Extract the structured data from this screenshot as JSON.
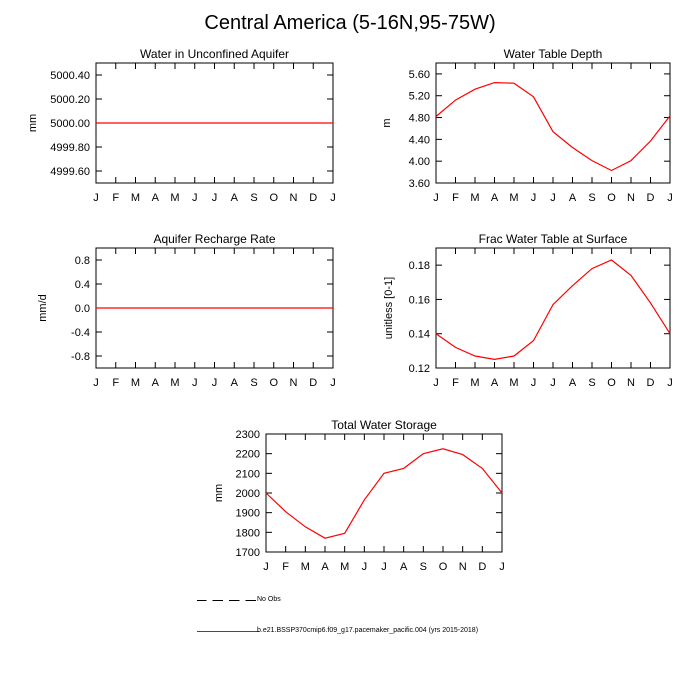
{
  "title": "Central America (5-16N,95-75W)",
  "legend": {
    "obs_label": "No Obs",
    "model_label": "b.e21.BSSP370cmip6.f09_g17.pacemaker_pacific.004 (yrs 2015-2018)",
    "model_color": "#ff0000"
  },
  "chart_data": [
    {
      "type": "line",
      "title": "Water in Unconfined Aquifer",
      "ylabel": "mm",
      "xlabel": "",
      "categories": [
        "J",
        "F",
        "M",
        "A",
        "M",
        "J",
        "J",
        "A",
        "S",
        "O",
        "N",
        "D",
        "J"
      ],
      "ylim": [
        4999.5,
        5000.5
      ],
      "yticks": [
        4999.6,
        4999.8,
        5000.0,
        5000.2,
        5000.4
      ],
      "ytick_labels": [
        "4999.60",
        "4999.80",
        "5000.00",
        "5000.20",
        "5000.40"
      ],
      "series": [
        {
          "name": "model",
          "color": "#ff0000",
          "values": [
            5000,
            5000,
            5000,
            5000,
            5000,
            5000,
            5000,
            5000,
            5000,
            5000,
            5000,
            5000,
            5000
          ]
        }
      ]
    },
    {
      "type": "line",
      "title": "Water Table Depth",
      "ylabel": "m",
      "xlabel": "",
      "categories": [
        "J",
        "F",
        "M",
        "A",
        "M",
        "J",
        "J",
        "A",
        "S",
        "O",
        "N",
        "D",
        "J"
      ],
      "ylim": [
        3.6,
        5.8
      ],
      "yticks": [
        3.6,
        4.0,
        4.4,
        4.8,
        5.2,
        5.6
      ],
      "ytick_labels": [
        "3.60",
        "4.00",
        "4.40",
        "4.80",
        "5.20",
        "5.60"
      ],
      "series": [
        {
          "name": "model",
          "color": "#ff0000",
          "values": [
            4.82,
            5.12,
            5.32,
            5.44,
            5.43,
            5.18,
            4.54,
            4.25,
            4.01,
            3.83,
            4.01,
            4.37,
            4.83
          ]
        }
      ]
    },
    {
      "type": "line",
      "title": "Aquifer Recharge Rate",
      "ylabel": "mm/d",
      "xlabel": "",
      "categories": [
        "J",
        "F",
        "M",
        "A",
        "M",
        "J",
        "J",
        "A",
        "S",
        "O",
        "N",
        "D",
        "J"
      ],
      "ylim": [
        -1.0,
        1.0
      ],
      "yticks": [
        -0.8,
        -0.4,
        0.0,
        0.4,
        0.8
      ],
      "ytick_labels": [
        "-0.8",
        "-0.4",
        "0.0",
        "0.4",
        "0.8"
      ],
      "series": [
        {
          "name": "model",
          "color": "#ff0000",
          "values": [
            0,
            0,
            0,
            0,
            0,
            0,
            0,
            0,
            0,
            0,
            0,
            0,
            0
          ]
        }
      ]
    },
    {
      "type": "line",
      "title": "Frac Water Table at Surface",
      "ylabel": "unitless [0-1]",
      "xlabel": "",
      "categories": [
        "J",
        "F",
        "M",
        "A",
        "M",
        "J",
        "J",
        "A",
        "S",
        "O",
        "N",
        "D",
        "J"
      ],
      "ylim": [
        0.12,
        0.19
      ],
      "yticks": [
        0.12,
        0.14,
        0.16,
        0.18
      ],
      "ytick_labels": [
        "0.12",
        "0.14",
        "0.16",
        "0.18"
      ],
      "series": [
        {
          "name": "model",
          "color": "#ff0000",
          "values": [
            0.14,
            0.132,
            0.127,
            0.125,
            0.127,
            0.136,
            0.157,
            0.168,
            0.178,
            0.183,
            0.174,
            0.158,
            0.14
          ]
        }
      ]
    },
    {
      "type": "line",
      "title": "Total Water Storage",
      "ylabel": "mm",
      "xlabel": "",
      "categories": [
        "J",
        "F",
        "M",
        "A",
        "M",
        "J",
        "J",
        "A",
        "S",
        "O",
        "N",
        "D",
        "J"
      ],
      "ylim": [
        1700,
        2300
      ],
      "yticks": [
        1700,
        1800,
        1900,
        2000,
        2100,
        2200,
        2300
      ],
      "ytick_labels": [
        "1700",
        "1800",
        "1900",
        "2000",
        "2100",
        "2200",
        "2300"
      ],
      "series": [
        {
          "name": "model",
          "color": "#ff0000",
          "values": [
            2000,
            1905,
            1828,
            1770,
            1795,
            1965,
            2100,
            2125,
            2200,
            2225,
            2195,
            2125,
            2000
          ]
        }
      ]
    }
  ]
}
